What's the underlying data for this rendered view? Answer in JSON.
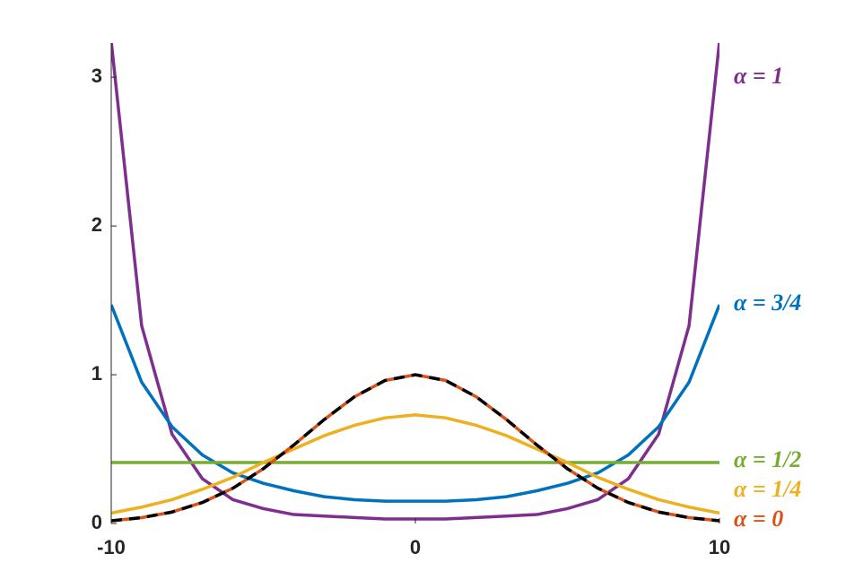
{
  "chart_data": {
    "type": "line",
    "x": [
      -10,
      -9,
      -8,
      -7,
      -6,
      -5,
      -4,
      -3,
      -2,
      -1,
      0,
      1,
      2,
      3,
      4,
      5,
      6,
      7,
      8,
      9,
      10
    ],
    "series": [
      {
        "name": "α = 1",
        "color": "#7E2F8E",
        "values": [
          3.24,
          1.33,
          0.6,
          0.3,
          0.16,
          0.1,
          0.06,
          0.05,
          0.04,
          0.03,
          0.03,
          0.03,
          0.04,
          0.05,
          0.06,
          0.1,
          0.16,
          0.3,
          0.6,
          1.33,
          3.24
        ]
      },
      {
        "name": "α = 3/4",
        "color": "#0072BD",
        "values": [
          1.47,
          0.95,
          0.65,
          0.46,
          0.34,
          0.27,
          0.22,
          0.18,
          0.16,
          0.15,
          0.15,
          0.15,
          0.16,
          0.18,
          0.22,
          0.27,
          0.34,
          0.46,
          0.65,
          0.95,
          1.47
        ]
      },
      {
        "name": "α = 1/2",
        "color": "#77AC30",
        "values": [
          0.41,
          0.41,
          0.41,
          0.41,
          0.41,
          0.41,
          0.41,
          0.41,
          0.41,
          0.41,
          0.41,
          0.41,
          0.41,
          0.41,
          0.41,
          0.41,
          0.41,
          0.41,
          0.41,
          0.41,
          0.41
        ]
      },
      {
        "name": "α = 1/4",
        "color": "#EDB120",
        "values": [
          0.07,
          0.11,
          0.16,
          0.23,
          0.31,
          0.41,
          0.5,
          0.59,
          0.66,
          0.71,
          0.73,
          0.71,
          0.66,
          0.59,
          0.5,
          0.41,
          0.31,
          0.23,
          0.16,
          0.11,
          0.07
        ]
      },
      {
        "name": "α = 0",
        "color": "#D95319",
        "values": [
          0.018,
          0.039,
          0.077,
          0.141,
          0.237,
          0.368,
          0.527,
          0.698,
          0.852,
          0.961,
          1,
          0.961,
          0.852,
          0.698,
          0.527,
          0.368,
          0.237,
          0.141,
          0.077,
          0.039,
          0.018
        ]
      },
      {
        "color": "#000000",
        "dashed": true,
        "values": [
          0.018,
          0.039,
          0.077,
          0.141,
          0.237,
          0.368,
          0.527,
          0.698,
          0.852,
          0.961,
          1,
          0.961,
          0.852,
          0.698,
          0.527,
          0.368,
          0.237,
          0.141,
          0.077,
          0.039,
          0.018
        ]
      }
    ],
    "xlim": [
      -10,
      10
    ],
    "xticks": [
      -10,
      0,
      10
    ],
    "ylim": [
      0,
      3.23
    ],
    "yticks": [
      0,
      1,
      2,
      3
    ]
  }
}
